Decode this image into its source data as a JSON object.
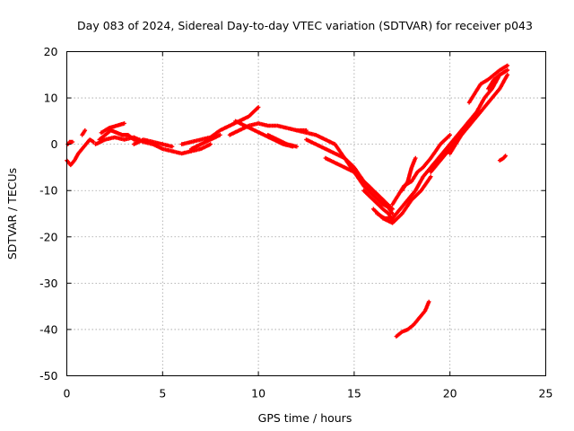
{
  "chart_data": {
    "type": "scatter",
    "title": "Day 083 of 2024, Sidereal Day-to-day VTEC variation (SDTVAR) for receiver p043",
    "xlabel": "GPS time / hours",
    "ylabel": "SDTVAR / TECUs",
    "xlim": [
      0,
      25
    ],
    "ylim": [
      -50,
      20
    ],
    "xticks": [
      0,
      5,
      10,
      15,
      20,
      25
    ],
    "yticks": [
      -50,
      -40,
      -30,
      -20,
      -10,
      0,
      10,
      20
    ],
    "grid": true,
    "series": [
      {
        "name": "SDTVAR",
        "color": "#ff0000",
        "marker": "plus",
        "tracks": [
          {
            "x": [
              0.0,
              0.2,
              0.4,
              0.6,
              0.8,
              1.0,
              1.2,
              1.4
            ],
            "y": [
              -3.5,
              -4.5,
              -3.5,
              -2,
              -1,
              0,
              1,
              0.5
            ]
          },
          {
            "x": [
              0.05,
              0.15,
              0.3
            ],
            "y": [
              0,
              0.5,
              0.5
            ]
          },
          {
            "x": [
              0.8,
              0.95
            ],
            "y": [
              2,
              3
            ]
          },
          {
            "x": [
              1.5,
              2.0,
              2.5,
              3.0,
              3.5,
              4.0,
              4.5,
              5.0,
              5.5,
              6.0,
              6.5,
              7.0,
              7.5
            ],
            "y": [
              0,
              1,
              1.5,
              1,
              1.5,
              0.5,
              0,
              -1,
              -1.5,
              -2,
              -1.5,
              -1,
              0
            ]
          },
          {
            "x": [
              1.7,
              2.0,
              2.3,
              2.6,
              2.9,
              3.2,
              3.5,
              3.8
            ],
            "y": [
              1,
              2,
              3,
              2.5,
              2,
              2,
              1,
              1
            ]
          },
          {
            "x": [
              1.8,
              2.2,
              2.6,
              3.0
            ],
            "y": [
              2.5,
              3.5,
              4,
              4.5
            ]
          },
          {
            "x": [
              3.5,
              4.0,
              4.5,
              5.0,
              5.5
            ],
            "y": [
              0,
              1,
              0.5,
              0,
              -0.5
            ]
          },
          {
            "x": [
              6.0,
              6.5,
              7.0,
              7.5,
              8.0,
              8.5,
              9.0,
              9.5,
              10.0
            ],
            "y": [
              0,
              0.5,
              1,
              1.5,
              3,
              4,
              5,
              6,
              8
            ]
          },
          {
            "x": [
              6.5,
              7.0,
              7.5,
              8.0
            ],
            "y": [
              -1,
              0,
              1,
              2
            ]
          },
          {
            "x": [
              8.5,
              9.0,
              9.5,
              10.0,
              10.5,
              11.0,
              11.5,
              12.0,
              12.5
            ],
            "y": [
              2,
              3,
              4,
              4.5,
              4,
              4,
              3.5,
              3,
              3
            ]
          },
          {
            "x": [
              8.8,
              9.3,
              9.8,
              10.3,
              10.8,
              11.3,
              11.8
            ],
            "y": [
              5,
              4,
              3,
              2,
              1,
              0,
              -0.5
            ]
          },
          {
            "x": [
              10.5,
              11.0,
              11.5,
              12.0
            ],
            "y": [
              2,
              1,
              0,
              -0.5
            ]
          },
          {
            "x": [
              12.0,
              12.5,
              13.0,
              13.5,
              14.0,
              14.5,
              15.0,
              15.5,
              16.0,
              16.5,
              17.0
            ],
            "y": [
              3,
              2.5,
              2,
              1,
              0,
              -3,
              -5,
              -8,
              -10,
              -12,
              -15
            ]
          },
          {
            "x": [
              12.5,
              13.0,
              13.5,
              14.0,
              14.5,
              15.0,
              15.5,
              16.0,
              16.5,
              17.0
            ],
            "y": [
              1,
              0,
              -1,
              -2,
              -3,
              -6,
              -9,
              -11,
              -13,
              -14
            ]
          },
          {
            "x": [
              13.5,
              14.0,
              14.5,
              15.0,
              15.5,
              16.0,
              16.5,
              17.0
            ],
            "y": [
              -3,
              -4,
              -5,
              -6,
              -8,
              -10,
              -12,
              -14
            ]
          },
          {
            "x": [
              15.5,
              16.0,
              16.5,
              16.8,
              17.0
            ],
            "y": [
              -10,
              -12,
              -14,
              -15,
              -16.5
            ]
          },
          {
            "x": [
              16.0,
              16.5,
              17.0,
              17.5,
              18.0,
              18.5,
              19.0
            ],
            "y": [
              -14,
              -16,
              -17,
              -15,
              -12,
              -10,
              -7
            ]
          },
          {
            "x": [
              16.2,
              16.6,
              17.0,
              17.4,
              17.8,
              18.2,
              18.6,
              19.0,
              19.4,
              19.8,
              20.2,
              20.6,
              21.0
            ],
            "y": [
              -15,
              -16,
              -16,
              -14,
              -12,
              -10,
              -7,
              -5,
              -3,
              -1,
              1,
              3,
              5
            ]
          },
          {
            "x": [
              17.0,
              17.3,
              17.6,
              18.0,
              18.3,
              18.6,
              19.0,
              19.5,
              20.0
            ],
            "y": [
              -13,
              -11,
              -9,
              -8,
              -6,
              -5,
              -3,
              0,
              2
            ]
          },
          {
            "x": [
              17.5,
              17.8,
              18.0,
              18.2
            ],
            "y": [
              -10,
              -8,
              -5,
              -3
            ]
          },
          {
            "x": [
              19.0,
              19.4,
              19.8,
              20.2,
              20.6,
              21.0,
              21.4,
              21.8,
              22.2,
              22.6,
              23.0
            ],
            "y": [
              -6,
              -4,
              -2,
              0,
              2,
              4,
              6,
              8,
              10,
              12,
              15
            ]
          },
          {
            "x": [
              20.0,
              20.3,
              20.6,
              21.0,
              21.4,
              21.8,
              22.2,
              22.6,
              23.0
            ],
            "y": [
              -2,
              0,
              2,
              5,
              7,
              10,
              12,
              15,
              16
            ]
          },
          {
            "x": [
              21.0,
              21.3,
              21.6,
              22.0,
              22.3,
              22.6,
              23.0
            ],
            "y": [
              9,
              11,
              13,
              14,
              15,
              16,
              17
            ]
          },
          {
            "x": [
              22.0,
              22.3,
              22.6,
              23.0
            ],
            "y": [
              12,
              14,
              15,
              16
            ]
          },
          {
            "x": [
              22.6,
              22.8,
              22.9
            ],
            "y": [
              -3.5,
              -3,
              -2.5
            ]
          },
          {
            "x": [
              17.2,
              17.5,
              17.8,
              18.1,
              18.4,
              18.7,
              18.9
            ],
            "y": [
              -41.5,
              -40.5,
              -40,
              -39,
              -37.5,
              -36,
              -34
            ]
          }
        ]
      }
    ]
  }
}
